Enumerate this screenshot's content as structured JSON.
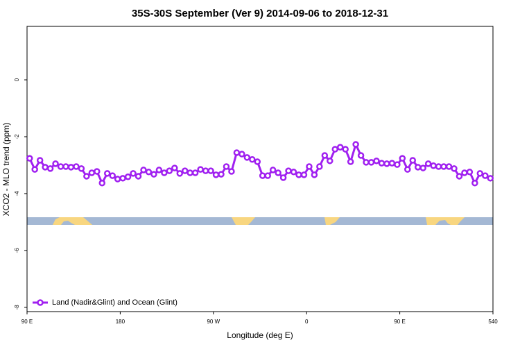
{
  "chart_data": {
    "type": "line",
    "title": "35S-30S September (Ver 9)   2014-09-06 to 2018-12-31",
    "x_label": "Longitude (deg E)",
    "y_label": "XCO2 - MLO trend (ppm)",
    "xlim": [
      90,
      540
    ],
    "ylim": [
      -8.15,
      1.88
    ],
    "xticks": [
      {
        "value": 90,
        "label": "90 E"
      },
      180,
      {
        "value": 270,
        "label": "90 W"
      },
      {
        "value": 360,
        "label": "0"
      },
      {
        "value": 450,
        "label": "90 E"
      },
      540
    ],
    "yticks": [
      0,
      -2,
      -4,
      -6,
      -8
    ],
    "legend": "bottom-left",
    "x": [
      92.5,
      97.5,
      102.5,
      107.5,
      112.5,
      117.5,
      122.5,
      127.5,
      132.5,
      137.5,
      142.5,
      147.5,
      152.5,
      157.5,
      162.5,
      167.5,
      172.5,
      177.5,
      182.5,
      187.5,
      192.5,
      197.5,
      202.5,
      207.5,
      212.5,
      217.5,
      222.5,
      227.5,
      232.5,
      237.5,
      242.5,
      247.5,
      252.5,
      257.5,
      262.5,
      267.5,
      272.5,
      277.5,
      282.5,
      287.5,
      292.5,
      297.5,
      302.5,
      307.5,
      312.5,
      317.5,
      322.5,
      327.5,
      332.5,
      337.5,
      342.5,
      347.5,
      352.5,
      357.5,
      362.5,
      367.5,
      372.5,
      377.5,
      382.5,
      387.5,
      392.5,
      397.5,
      402.5,
      407.5,
      412.5,
      417.5,
      422.5,
      427.5,
      432.5,
      437.5,
      442.5,
      447.5,
      452.5,
      457.5,
      462.5,
      467.5,
      472.5,
      477.5,
      482.5,
      487.5,
      492.5,
      497.5,
      502.5,
      507.5,
      512.5,
      517.5,
      522.5,
      527.5,
      532.5,
      537.5
    ],
    "series": [
      {
        "name": "Land (Nadir&Glint) and Ocean (Glint)",
        "color": "#a020f0",
        "values": [
          -2.76,
          -3.15,
          -2.83,
          -3.07,
          -3.12,
          -2.95,
          -3.05,
          -3.05,
          -3.07,
          -3.05,
          -3.12,
          -3.39,
          -3.27,
          -3.22,
          -3.63,
          -3.29,
          -3.37,
          -3.49,
          -3.46,
          -3.41,
          -3.29,
          -3.39,
          -3.17,
          -3.24,
          -3.32,
          -3.17,
          -3.27,
          -3.2,
          -3.1,
          -3.29,
          -3.2,
          -3.27,
          -3.27,
          -3.15,
          -3.2,
          -3.2,
          -3.34,
          -3.32,
          -3.05,
          -3.22,
          -2.56,
          -2.61,
          -2.73,
          -2.8,
          -2.88,
          -3.37,
          -3.37,
          -3.17,
          -3.27,
          -3.44,
          -3.2,
          -3.24,
          -3.34,
          -3.34,
          -3.05,
          -3.34,
          -3.05,
          -2.66,
          -2.85,
          -2.44,
          -2.37,
          -2.44,
          -2.88,
          -2.27,
          -2.66,
          -2.9,
          -2.9,
          -2.85,
          -2.93,
          -2.95,
          -2.93,
          -2.98,
          -2.76,
          -3.15,
          -2.83,
          -3.07,
          -3.1,
          -2.95,
          -3.02,
          -3.05,
          -3.05,
          -3.05,
          -3.12,
          -3.39,
          -3.27,
          -3.24,
          -3.63,
          -3.29,
          -3.37,
          -3.46
        ]
      }
    ]
  }
}
